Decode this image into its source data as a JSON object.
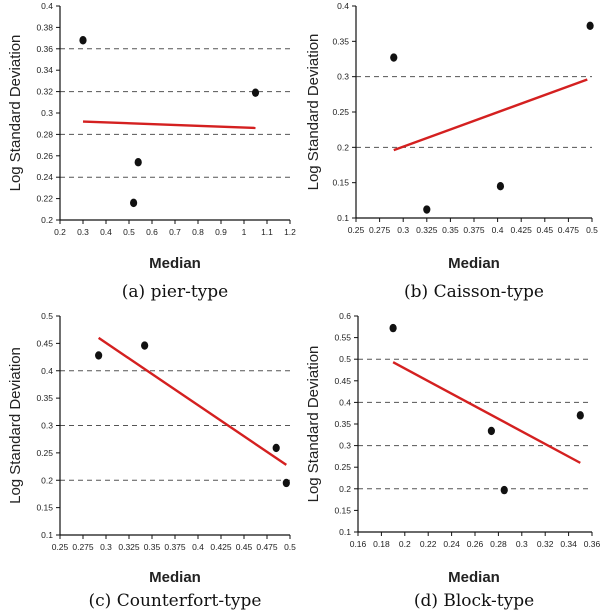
{
  "chart_data": [
    {
      "type": "scatter",
      "caption": "(a) pier-type",
      "xlabel": "Median",
      "ylabel": "Log Standard Deviation",
      "xlim": [
        0.2,
        1.2
      ],
      "ylim": [
        0.2,
        0.4
      ],
      "xticks": [
        "0.2",
        "0.3",
        "0.4",
        "0.5",
        "0.6",
        "0.7",
        "0.8",
        "0.9",
        "1",
        "1.1",
        "1.2"
      ],
      "yticks": [
        "0.2",
        "0.22",
        "0.24",
        "0.26",
        "0.28",
        "0.3",
        "0.32",
        "0.34",
        "0.36",
        "0.38",
        "0.4"
      ],
      "xtick_values": [
        0.2,
        0.3,
        0.4,
        0.5,
        0.6,
        0.7,
        0.8,
        0.9,
        1.0,
        1.1,
        1.2
      ],
      "ytick_values": [
        0.2,
        0.22,
        0.24,
        0.26,
        0.28,
        0.3,
        0.32,
        0.34,
        0.36,
        0.38,
        0.4
      ],
      "gridlines_y": [
        0.24,
        0.28,
        0.32,
        0.36
      ],
      "points": [
        [
          0.3,
          0.368
        ],
        [
          0.52,
          0.216
        ],
        [
          0.54,
          0.254
        ],
        [
          1.05,
          0.319
        ]
      ],
      "trendline": [
        [
          0.3,
          0.292
        ],
        [
          1.05,
          0.286
        ]
      ]
    },
    {
      "type": "scatter",
      "caption": "(b) Caisson-type",
      "xlabel": "Median",
      "ylabel": "Log Standard Deviation",
      "xlim": [
        0.25,
        0.5
      ],
      "ylim": [
        0.1,
        0.4
      ],
      "xticks": [
        "0.25",
        "0.275",
        "0.3",
        "0.325",
        "0.35",
        "0.375",
        "0.4",
        "0.425",
        "0.45",
        "0.475",
        "0.5"
      ],
      "yticks": [
        "0.1",
        "0.15",
        "0.2",
        "0.25",
        "0.3",
        "0.35",
        "0.4"
      ],
      "xtick_values": [
        0.25,
        0.275,
        0.3,
        0.325,
        0.35,
        0.375,
        0.4,
        0.425,
        0.45,
        0.475,
        0.5
      ],
      "ytick_values": [
        0.1,
        0.15,
        0.2,
        0.25,
        0.3,
        0.35,
        0.4
      ],
      "gridlines_y": [
        0.2,
        0.3
      ],
      "points": [
        [
          0.29,
          0.327
        ],
        [
          0.325,
          0.112
        ],
        [
          0.403,
          0.145
        ],
        [
          0.498,
          0.372
        ]
      ],
      "trendline": [
        [
          0.29,
          0.196
        ],
        [
          0.495,
          0.296
        ]
      ]
    },
    {
      "type": "scatter",
      "caption": "(c) Counterfort-type",
      "xlabel": "Median",
      "ylabel": "Log Standard Deviation",
      "xlim": [
        0.25,
        0.5
      ],
      "ylim": [
        0.1,
        0.5
      ],
      "xticks": [
        "0.25",
        "0.275",
        "0.3",
        "0.325",
        "0.35",
        "0.375",
        "0.4",
        "0.425",
        "0.45",
        "0.475",
        "0.5"
      ],
      "yticks": [
        "0.1",
        "0.15",
        "0.2",
        "0.25",
        "0.3",
        "0.35",
        "0.4",
        "0.45",
        "0.5"
      ],
      "xtick_values": [
        0.25,
        0.275,
        0.3,
        0.325,
        0.35,
        0.375,
        0.4,
        0.425,
        0.45,
        0.475,
        0.5
      ],
      "ytick_values": [
        0.1,
        0.15,
        0.2,
        0.25,
        0.3,
        0.35,
        0.4,
        0.45,
        0.5
      ],
      "gridlines_y": [
        0.2,
        0.3,
        0.4
      ],
      "points": [
        [
          0.292,
          0.428
        ],
        [
          0.342,
          0.446
        ],
        [
          0.485,
          0.259
        ],
        [
          0.496,
          0.195
        ]
      ],
      "trendline": [
        [
          0.292,
          0.46
        ],
        [
          0.496,
          0.228
        ]
      ]
    },
    {
      "type": "scatter",
      "caption": "(d) Block-type",
      "xlabel": "Median",
      "ylabel": "Log Standard Deviation",
      "xlim": [
        0.16,
        0.36
      ],
      "ylim": [
        0.1,
        0.6
      ],
      "xticks": [
        "0.16",
        "0.18",
        "0.2",
        "0.22",
        "0.24",
        "0.26",
        "0.28",
        "0.3",
        "0.32",
        "0.34",
        "0.36"
      ],
      "yticks": [
        "0.1",
        "0.15",
        "0.2",
        "0.25",
        "0.3",
        "0.35",
        "0.4",
        "0.45",
        "0.5",
        "0.55",
        "0.6"
      ],
      "xtick_values": [
        0.16,
        0.18,
        0.2,
        0.22,
        0.24,
        0.26,
        0.28,
        0.3,
        0.32,
        0.34,
        0.36
      ],
      "ytick_values": [
        0.1,
        0.15,
        0.2,
        0.25,
        0.3,
        0.35,
        0.4,
        0.45,
        0.5,
        0.55,
        0.6
      ],
      "gridlines_y": [
        0.2,
        0.3,
        0.4,
        0.5
      ],
      "points": [
        [
          0.19,
          0.572
        ],
        [
          0.274,
          0.334
        ],
        [
          0.285,
          0.197
        ],
        [
          0.35,
          0.37
        ]
      ],
      "trendline": [
        [
          0.19,
          0.493
        ],
        [
          0.35,
          0.26
        ]
      ]
    }
  ],
  "colors": {
    "trend": "#d42020",
    "points": "#111111",
    "grid": "#555555",
    "axis": "#111111"
  }
}
